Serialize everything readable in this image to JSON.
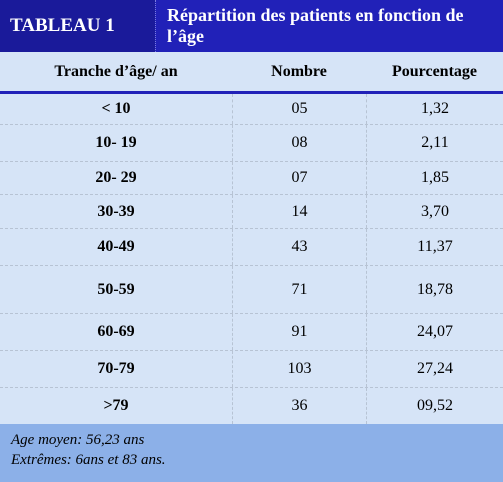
{
  "title": {
    "label": "TABLEAU 1",
    "text": "Répartition des patients en fonction de l’âge"
  },
  "columns": [
    "Tranche d’âge/ an",
    "Nombre",
    "Pourcentage"
  ],
  "rows": [
    [
      "< 10",
      "05",
      "1,32"
    ],
    [
      "10- 19",
      "08",
      "2,11"
    ],
    [
      "20-  29",
      "07",
      "1,85"
    ],
    [
      "30-39",
      "14",
      "3,70"
    ],
    [
      "40-49",
      "43",
      "11,37"
    ],
    [
      "50-59",
      "71",
      "18,78"
    ],
    [
      "60-69",
      "91",
      "24,07"
    ],
    [
      "70-79",
      "103",
      "27,24"
    ],
    [
      ">79",
      "36",
      "09,52"
    ]
  ],
  "footer": {
    "line1": "Age moyen: 56,23 ans",
    "line2": "Extrêmes: 6ans et 83 ans."
  },
  "colors": {
    "header_bg": "#2121b8",
    "header_label_bg": "#1a1a9a",
    "table_bg": "#d6e4f7",
    "footer_bg": "#8cb0e8"
  }
}
